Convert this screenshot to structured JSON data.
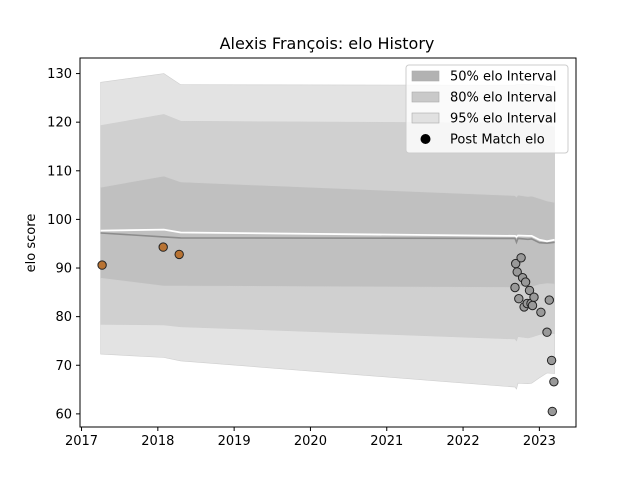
{
  "chart_data": {
    "type": "scatter",
    "title": "Alexis François: elo History",
    "xlabel": "",
    "ylabel": "elo score",
    "xlim": [
      2016.98,
      2023.48
    ],
    "ylim": [
      57.3,
      133.2
    ],
    "xticks": [
      2017,
      2018,
      2019,
      2020,
      2021,
      2022,
      2023
    ],
    "yticks": [
      60,
      70,
      80,
      90,
      100,
      110,
      120,
      130
    ],
    "grid": false,
    "legend_position": "top-right",
    "legend": [
      {
        "label": "50% elo Interval",
        "kind": "band",
        "color": "#b2b2b2"
      },
      {
        "label": "80% elo Interval",
        "kind": "band",
        "color": "#c9c9c9"
      },
      {
        "label": "95% elo Interval",
        "kind": "band",
        "color": "#e1e1e1"
      },
      {
        "label": "Post Match elo",
        "kind": "marker",
        "color": "#000000"
      }
    ],
    "bands": [
      {
        "name": "95% elo Interval",
        "color": "#e3e3e3",
        "x": [
          2017.25,
          2018.08,
          2018.3,
          2022.68,
          2022.7,
          2022.72,
          2022.85,
          2022.9,
          2023.0,
          2023.1,
          2023.2
        ],
        "upper": [
          128.2,
          130.0,
          127.7,
          127.6,
          127.7,
          127.7,
          127.7,
          127.7,
          127.6,
          127.4,
          127.3
        ],
        "lower": [
          72.3,
          71.6,
          70.9,
          65.5,
          65.1,
          66.3,
          66.2,
          66.3,
          67.4,
          68.4,
          68.3
        ]
      },
      {
        "name": "80% elo Interval",
        "color": "#d0d0d0",
        "x": [
          2017.25,
          2018.08,
          2018.3,
          2022.68,
          2022.7,
          2022.72,
          2022.85,
          2022.9,
          2023.0,
          2023.1,
          2023.2
        ],
        "upper": [
          119.3,
          121.6,
          120.2,
          119.8,
          119.6,
          119.9,
          119.8,
          119.8,
          119.6,
          119.3,
          119.0
        ],
        "lower": [
          78.4,
          78.3,
          77.9,
          75.4,
          75.0,
          75.9,
          75.6,
          75.8,
          76.3,
          76.6,
          76.5
        ]
      },
      {
        "name": "50% elo Interval",
        "color": "#c0c0c0",
        "x": [
          2017.25,
          2018.08,
          2018.3,
          2022.68,
          2022.7,
          2022.72,
          2022.85,
          2022.9,
          2023.0,
          2023.1,
          2023.2
        ],
        "upper": [
          106.6,
          108.9,
          107.7,
          104.9,
          104.6,
          105.0,
          104.7,
          104.8,
          104.3,
          103.8,
          103.5
        ],
        "lower": [
          87.9,
          86.3,
          86.3,
          86.0,
          85.6,
          86.3,
          86.0,
          86.1,
          86.6,
          86.8,
          86.7
        ]
      }
    ],
    "mean_line": {
      "color": "#ffffff",
      "x": [
        2017.25,
        2018.08,
        2018.3,
        2022.68,
        2022.7,
        2022.72,
        2022.85,
        2022.9,
        2023.0,
        2023.1,
        2023.2
      ],
      "y": [
        97.7,
        97.9,
        97.3,
        96.6,
        96.4,
        96.7,
        96.6,
        96.6,
        95.8,
        95.5,
        95.8
      ]
    },
    "median_line": {
      "color": "#8c8c8c",
      "x": [
        2017.25,
        2018.08,
        2018.3,
        2022.68,
        2022.7,
        2022.72,
        2022.85,
        2022.9,
        2023.0,
        2023.1,
        2023.2
      ],
      "y": [
        97.2,
        96.4,
        96.2,
        96.1,
        95.3,
        96.1,
        95.9,
        96.0,
        95.2,
        95.1,
        95.3
      ]
    },
    "points": [
      {
        "x": 2017.27,
        "y": 90.6,
        "color": "#b87333"
      },
      {
        "x": 2018.07,
        "y": 94.3,
        "color": "#b87333"
      },
      {
        "x": 2018.28,
        "y": 92.8,
        "color": "#b87333"
      },
      {
        "x": 2022.68,
        "y": 86.0,
        "color": "#999999"
      },
      {
        "x": 2022.69,
        "y": 90.9,
        "color": "#999999"
      },
      {
        "x": 2022.71,
        "y": 89.2,
        "color": "#999999"
      },
      {
        "x": 2022.73,
        "y": 83.7,
        "color": "#999999"
      },
      {
        "x": 2022.76,
        "y": 92.1,
        "color": "#999999"
      },
      {
        "x": 2022.78,
        "y": 88.0,
        "color": "#999999"
      },
      {
        "x": 2022.8,
        "y": 82.0,
        "color": "#999999"
      },
      {
        "x": 2022.82,
        "y": 87.1,
        "color": "#999999"
      },
      {
        "x": 2022.84,
        "y": 82.7,
        "color": "#999999"
      },
      {
        "x": 2022.87,
        "y": 85.4,
        "color": "#999999"
      },
      {
        "x": 2022.89,
        "y": 82.7,
        "color": "#999999"
      },
      {
        "x": 2022.91,
        "y": 82.3,
        "color": "#999999"
      },
      {
        "x": 2022.93,
        "y": 84.0,
        "color": "#999999"
      },
      {
        "x": 2023.02,
        "y": 80.9,
        "color": "#999999"
      },
      {
        "x": 2023.1,
        "y": 76.8,
        "color": "#999999"
      },
      {
        "x": 2023.13,
        "y": 83.4,
        "color": "#999999"
      },
      {
        "x": 2023.16,
        "y": 71.0,
        "color": "#999999"
      },
      {
        "x": 2023.17,
        "y": 60.5,
        "color": "#999999"
      },
      {
        "x": 2023.19,
        "y": 66.6,
        "color": "#999999"
      }
    ]
  }
}
